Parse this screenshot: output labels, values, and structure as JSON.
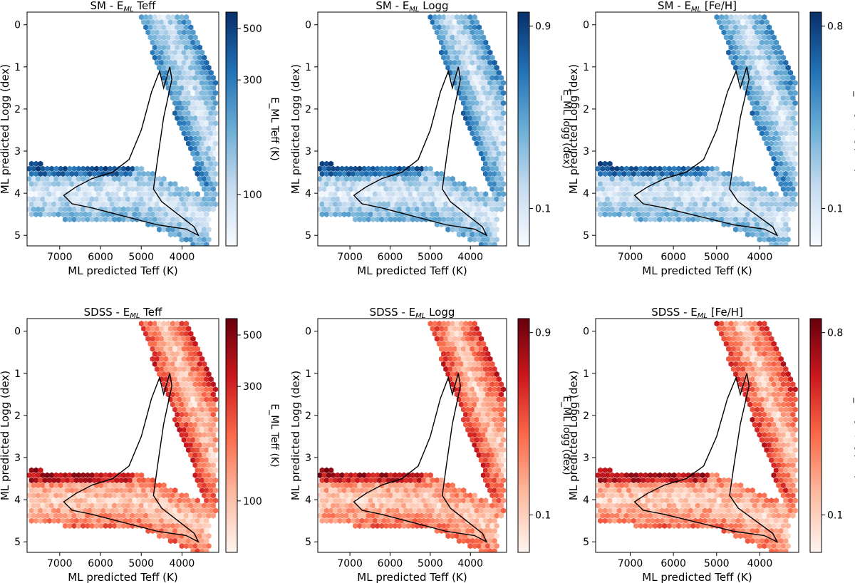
{
  "chart_data": [
    {
      "type": "hexbin",
      "title_prefix": "SM - E",
      "title_sub": "ML",
      "title_suffix": " Teff",
      "xlabel": "ML predicted Teff (K)",
      "ylabel": "ML predicted Logg (dex)",
      "x_ticks": [
        "7000",
        "6000",
        "5000",
        "4000"
      ],
      "y_ticks": [
        "0",
        "1",
        "2",
        "3",
        "4",
        "5"
      ],
      "xlim": [
        7800,
        3100
      ],
      "ylim": [
        -0.3,
        5.25
      ],
      "cbar_label": "E_ML Teff (K)",
      "cbar_ticks": [
        "100",
        "300",
        "500"
      ],
      "colormap": "Blues"
    },
    {
      "type": "hexbin",
      "title_prefix": "SM - E",
      "title_sub": "ML",
      "title_suffix": " Logg",
      "xlabel": "ML predicted Teff (K)",
      "ylabel": "ML predicted Logg (dex)",
      "x_ticks": [
        "7000",
        "6000",
        "5000",
        "4000"
      ],
      "y_ticks": [
        "0",
        "1",
        "2",
        "3",
        "4",
        "5"
      ],
      "xlim": [
        7800,
        3100
      ],
      "ylim": [
        -0.3,
        5.25
      ],
      "cbar_label": "E_ML logg (dex)",
      "cbar_ticks": [
        "0.1",
        "0.9"
      ],
      "colormap": "Blues"
    },
    {
      "type": "hexbin",
      "title_prefix": "SM - E",
      "title_sub": "ML",
      "title_suffix": " [Fe/H]",
      "xlabel": "ML predicted Teff (K)",
      "ylabel": "ML predicted Logg (dex)",
      "x_ticks": [
        "7000",
        "6000",
        "5000",
        "4000"
      ],
      "y_ticks": [
        "0",
        "1",
        "2",
        "3",
        "4",
        "5"
      ],
      "xlim": [
        7800,
        3100
      ],
      "ylim": [
        -0.3,
        5.25
      ],
      "cbar_label": "E_ML [Fe/H] (dex)",
      "cbar_ticks": [
        "0.1",
        "0.8"
      ],
      "colormap": "Blues"
    },
    {
      "type": "hexbin",
      "title_prefix": "SDSS - E",
      "title_sub": "ML",
      "title_suffix": " Teff",
      "xlabel": "ML predicted Teff (K)",
      "ylabel": "ML predicted Logg (dex)",
      "x_ticks": [
        "7000",
        "6000",
        "5000",
        "4000"
      ],
      "y_ticks": [
        "0",
        "1",
        "2",
        "3",
        "4",
        "5"
      ],
      "xlim": [
        7800,
        3100
      ],
      "ylim": [
        -0.3,
        5.25
      ],
      "cbar_label": "E_ML Teff (K)",
      "cbar_ticks": [
        "100",
        "300",
        "500"
      ],
      "colormap": "Reds"
    },
    {
      "type": "hexbin",
      "title_prefix": "SDSS - E",
      "title_sub": "ML",
      "title_suffix": " Logg",
      "xlabel": "ML predicted Teff (K)",
      "ylabel": "ML predicted Logg (dex)",
      "x_ticks": [
        "7000",
        "6000",
        "5000",
        "4000"
      ],
      "y_ticks": [
        "0",
        "1",
        "2",
        "3",
        "4",
        "5"
      ],
      "xlim": [
        7800,
        3100
      ],
      "ylim": [
        -0.3,
        5.25
      ],
      "cbar_label": "E_ML logg (dex)",
      "cbar_ticks": [
        "0.1",
        "0.9"
      ],
      "colormap": "Reds"
    },
    {
      "type": "hexbin",
      "title_prefix": "SDSS - E",
      "title_sub": "ML",
      "title_suffix": " [Fe/H]",
      "xlabel": "ML predicted Teff (K)",
      "ylabel": "ML predicted Logg (dex)",
      "x_ticks": [
        "7000",
        "6000",
        "5000",
        "4000"
      ],
      "y_ticks": [
        "0",
        "1",
        "2",
        "3",
        "4",
        "5"
      ],
      "xlim": [
        7800,
        3100
      ],
      "ylim": [
        -0.3,
        5.25
      ],
      "cbar_label": "E_ML [Fe/H] (dex)",
      "cbar_ticks": [
        "0.1",
        "0.8"
      ],
      "colormap": "Reds"
    }
  ],
  "colors": {
    "Blues": [
      "#f7fbff",
      "#c6dbef",
      "#6baed6",
      "#2171b5",
      "#08306b"
    ],
    "Reds": [
      "#fff5f0",
      "#fcbba1",
      "#fb6a4a",
      "#cb181d",
      "#67000d"
    ]
  }
}
